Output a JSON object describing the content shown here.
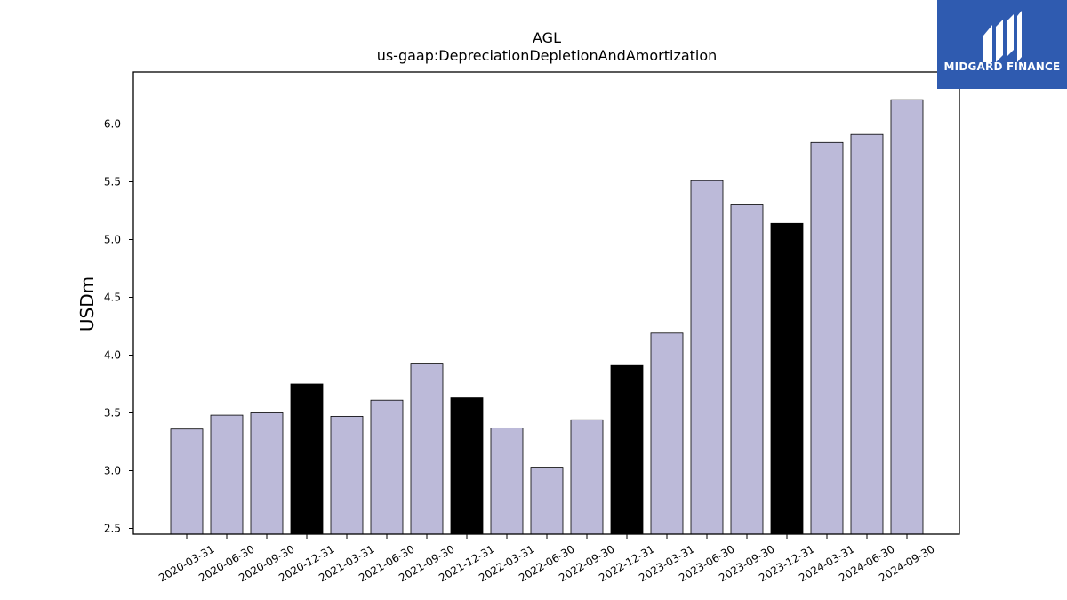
{
  "brand": {
    "name": "MIDGARD FINANCE",
    "logo_icon": "midgard-m-icon",
    "color": "#2f5bb0"
  },
  "chart_data": {
    "type": "bar",
    "title": "AGL",
    "subtitle": "us-gaap:DepreciationDepletionAndAmortization",
    "xlabel": "",
    "ylabel": "USDm",
    "ylim": [
      2.45,
      6.45
    ],
    "yticks": [
      "2.5",
      "3.0",
      "3.5",
      "4.0",
      "4.5",
      "5.0",
      "5.5",
      "6.0"
    ],
    "grid": false,
    "colors": {
      "regular": "#bcbad9",
      "year_end": "#000000",
      "edge": "#000000"
    },
    "categories": [
      "2020-03-31",
      "2020-06-30",
      "2020-09-30",
      "2020-12-31",
      "2021-03-31",
      "2021-06-30",
      "2021-09-30",
      "2021-12-31",
      "2022-03-31",
      "2022-06-30",
      "2022-09-30",
      "2022-12-31",
      "2023-03-31",
      "2023-06-30",
      "2023-09-30",
      "2023-12-31",
      "2024-03-31",
      "2024-06-30",
      "2024-09-30"
    ],
    "values": [
      3.36,
      3.48,
      3.5,
      3.75,
      3.47,
      3.61,
      3.93,
      3.63,
      3.37,
      3.03,
      3.44,
      3.91,
      4.19,
      5.51,
      5.3,
      5.14,
      5.84,
      5.91,
      6.21
    ],
    "highlight": [
      false,
      false,
      false,
      true,
      false,
      false,
      false,
      true,
      false,
      false,
      false,
      true,
      false,
      false,
      false,
      true,
      false,
      false,
      false
    ]
  }
}
